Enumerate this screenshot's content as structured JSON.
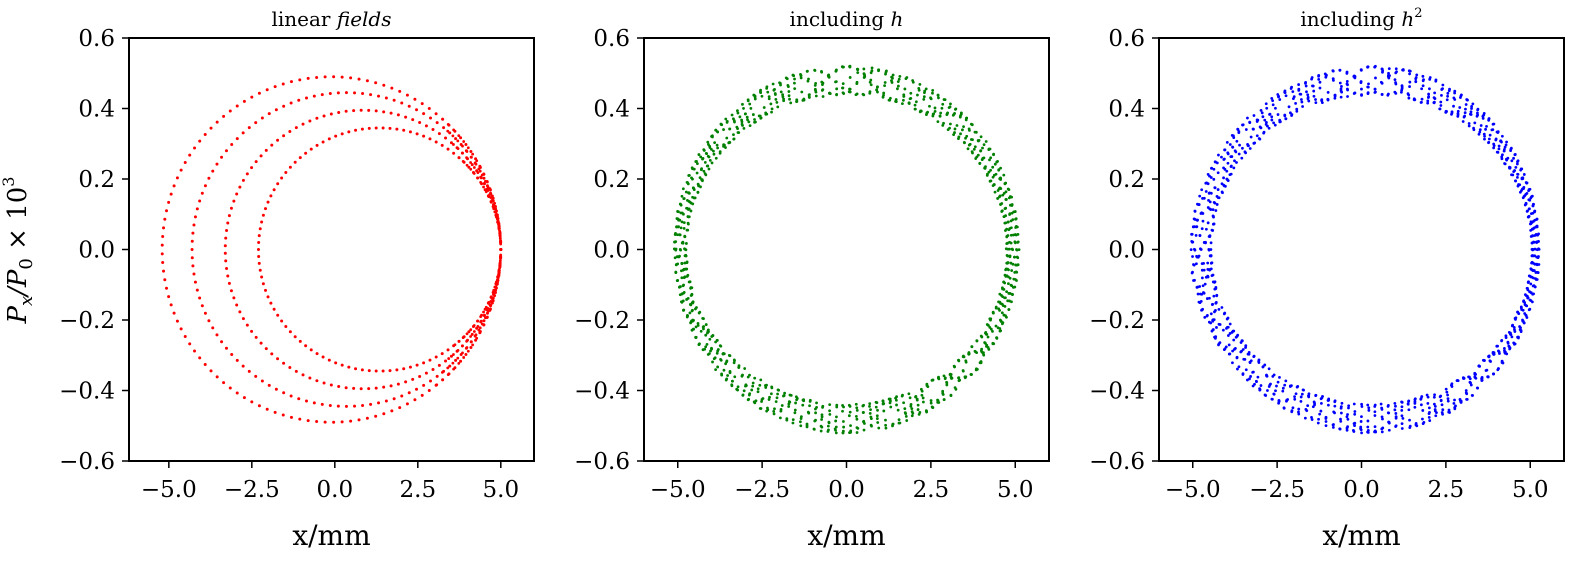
{
  "figure": {
    "ylabel_main": "P",
    "ylabel_sub1": "x",
    "ylabel_mid": "/P",
    "ylabel_sub2": "0",
    "ylabel_times": " × 10",
    "ylabel_sup": "3"
  },
  "chart_data": [
    {
      "type": "scatter",
      "title": "linear fields",
      "title_sup": "",
      "xlabel": "x/mm",
      "xlim": [
        -6.2,
        6.0
      ],
      "ylim": [
        -0.6,
        0.6
      ],
      "xticks": [
        -5.0,
        -2.5,
        0.0,
        2.5,
        5.0
      ],
      "yticks": [
        -0.6,
        -0.4,
        -0.2,
        0.0,
        0.2,
        0.4,
        0.6
      ],
      "xtick_labels": [
        "−5.0",
        "−2.5",
        "0.0",
        "2.5",
        "5.0"
      ],
      "ytick_labels": [
        "−0.6",
        "−0.4",
        "−0.2",
        "0.0",
        "0.2",
        "0.4",
        "0.6"
      ],
      "color": "#ff0000",
      "pattern": "nested ellipses sharing right edge",
      "series": [
        {
          "center_x": 1.35,
          "radius_x": 3.65,
          "radius_y": 0.345,
          "points": 110
        },
        {
          "center_x": 0.85,
          "radius_x": 4.15,
          "radius_y": 0.395,
          "points": 115
        },
        {
          "center_x": 0.35,
          "radius_x": 4.65,
          "radius_y": 0.445,
          "points": 120
        },
        {
          "center_x": -0.1,
          "radius_x": 5.1,
          "radius_y": 0.49,
          "points": 125
        }
      ]
    },
    {
      "type": "scatter",
      "title": "including h",
      "title_sup": "",
      "xlabel": "x/mm",
      "xlim": [
        -6.0,
        6.0
      ],
      "ylim": [
        -0.6,
        0.6
      ],
      "xticks": [
        -5.0,
        -2.5,
        0.0,
        2.5,
        5.0
      ],
      "yticks": [
        -0.6,
        -0.4,
        -0.2,
        0.0,
        0.2,
        0.4,
        0.6
      ],
      "xtick_labels": [
        "−5.0",
        "−2.5",
        "0.0",
        "2.5",
        "5.0"
      ],
      "ytick_labels": [
        "−0.6",
        "−0.4",
        "−0.2",
        "0.0",
        "0.2",
        "0.4",
        "0.6"
      ],
      "color": "#008000",
      "pattern": "thick ring with braided strands",
      "ring": {
        "center_x": 0.0,
        "center_y": 0.0,
        "radius_x_inner": 4.75,
        "radius_x_outer": 5.1,
        "radius_y_inner": 0.44,
        "radius_y_outer": 0.52,
        "strands": 8,
        "points_per_strand": 150
      }
    },
    {
      "type": "scatter",
      "title": "including h",
      "title_sup": "2",
      "xlabel": "x/mm",
      "xlim": [
        -6.0,
        6.0
      ],
      "ylim": [
        -0.6,
        0.6
      ],
      "xticks": [
        -5.0,
        -2.5,
        0.0,
        2.5,
        5.0
      ],
      "yticks": [
        -0.6,
        -0.4,
        -0.2,
        0.0,
        0.2,
        0.4,
        0.6
      ],
      "xtick_labels": [
        "−5.0",
        "−2.5",
        "0.0",
        "2.5",
        "5.0"
      ],
      "ytick_labels": [
        "−0.6",
        "−0.4",
        "−0.2",
        "0.0",
        "0.2",
        "0.4",
        "0.6"
      ],
      "color": "#0000ff",
      "pattern": "thick ring, wider on left, with radial dashes",
      "ring": {
        "center_x": 0.3,
        "center_y": 0.0,
        "radius_x_inner": 4.75,
        "radius_x_outer": 5.35,
        "radius_y_inner": 0.44,
        "radius_y_outer": 0.52,
        "strands": 8,
        "points_per_strand": 150
      }
    }
  ]
}
